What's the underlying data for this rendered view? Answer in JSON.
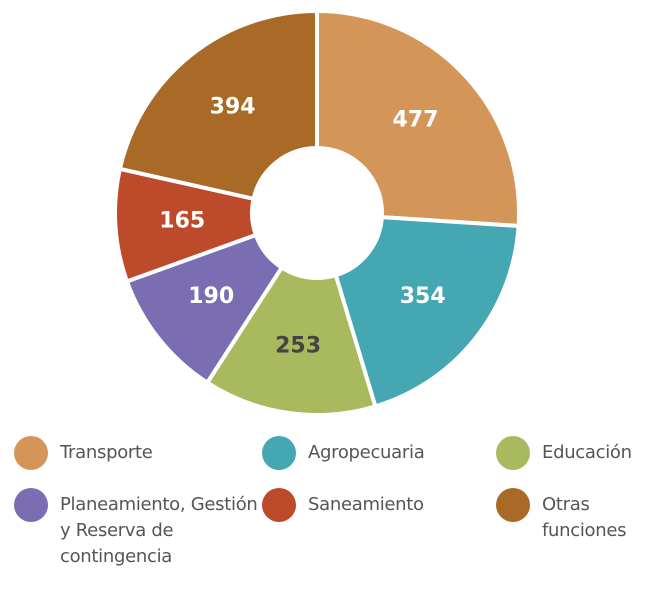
{
  "chart_data": {
    "type": "donut",
    "categories": [
      "Transporte",
      "Agropecuaria",
      "Educación",
      "Planeamiento, Gestión y Reserva de contingencia",
      "Saneamiento",
      "Otras funciones"
    ],
    "values": [
      477,
      354,
      253,
      190,
      165,
      394
    ],
    "colors": [
      "#d39658",
      "#44a7b1",
      "#a9b95e",
      "#7b6db2",
      "#bd4a2a",
      "#aa6a27"
    ],
    "label_colors": [
      "#ffffff",
      "#ffffff",
      "#444444",
      "#ffffff",
      "#ffffff",
      "#ffffff"
    ],
    "legend": "bottom"
  }
}
